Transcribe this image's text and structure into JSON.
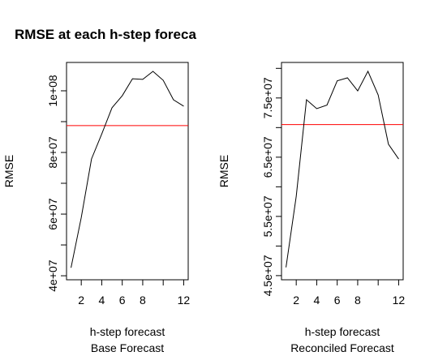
{
  "title": "RMSE at each h-step foreca",
  "chart_data": [
    {
      "type": "line",
      "xlabel": "h-step forecast",
      "ylabel": "RMSE",
      "subtitle": "Base Forecast",
      "x": [
        1,
        2,
        3,
        4,
        5,
        6,
        7,
        8,
        9,
        10,
        11,
        12
      ],
      "series": [
        {
          "color": "#000000",
          "values": [
            42600000,
            58900000,
            77900000,
            86000000,
            94500000,
            98400000,
            103900000,
            103700000,
            106300000,
            103400000,
            97100000,
            95000000
          ]
        }
      ],
      "hline": {
        "value": 88700000,
        "color": "#ff0000"
      },
      "xlim": [
        0.56,
        12.44
      ],
      "xticks": [
        2,
        4,
        6,
        8,
        {
          "value": 10,
          "label": null
        },
        12
      ],
      "ylim": [
        38700000,
        109200000
      ],
      "yticks": [
        {
          "value": 40000000,
          "label": "4e+07"
        },
        {
          "value": 50000000,
          "label": null
        },
        {
          "value": 60000000,
          "label": "6e+07"
        },
        {
          "value": 70000000,
          "label": null
        },
        {
          "value": 80000000,
          "label": "8e+07"
        },
        {
          "value": 90000000,
          "label": null
        },
        {
          "value": 100000000,
          "label": "1e+08"
        }
      ]
    },
    {
      "type": "line",
      "xlabel": "h-step forecast",
      "ylabel": "RMSE",
      "subtitle": "Reconciled Forecast",
      "x": [
        1,
        2,
        3,
        4,
        5,
        6,
        7,
        8,
        9,
        10,
        11,
        12
      ],
      "series": [
        {
          "color": "#000000",
          "values": [
            46400000,
            58400000,
            74700000,
            73200000,
            73800000,
            77900000,
            78400000,
            76200000,
            79500000,
            75500000,
            67200000,
            64700000
          ]
        }
      ],
      "hline": {
        "value": 70500000,
        "color": "#ff0000"
      },
      "xlim": [
        0.56,
        12.44
      ],
      "xticks": [
        2,
        4,
        6,
        8,
        {
          "value": 10,
          "label": null
        },
        12
      ],
      "ylim": [
        44300000,
        81000000
      ],
      "yticks": [
        {
          "value": 45000000,
          "label": "4.5e+07"
        },
        {
          "value": 50000000,
          "label": null
        },
        {
          "value": 55000000,
          "label": "5.5e+07"
        },
        {
          "value": 60000000,
          "label": null
        },
        {
          "value": 65000000,
          "label": "6.5e+07"
        },
        {
          "value": 70000000,
          "label": null
        },
        {
          "value": 75000000,
          "label": "7.5e+07"
        },
        {
          "value": 80000000,
          "label": null
        }
      ]
    }
  ]
}
